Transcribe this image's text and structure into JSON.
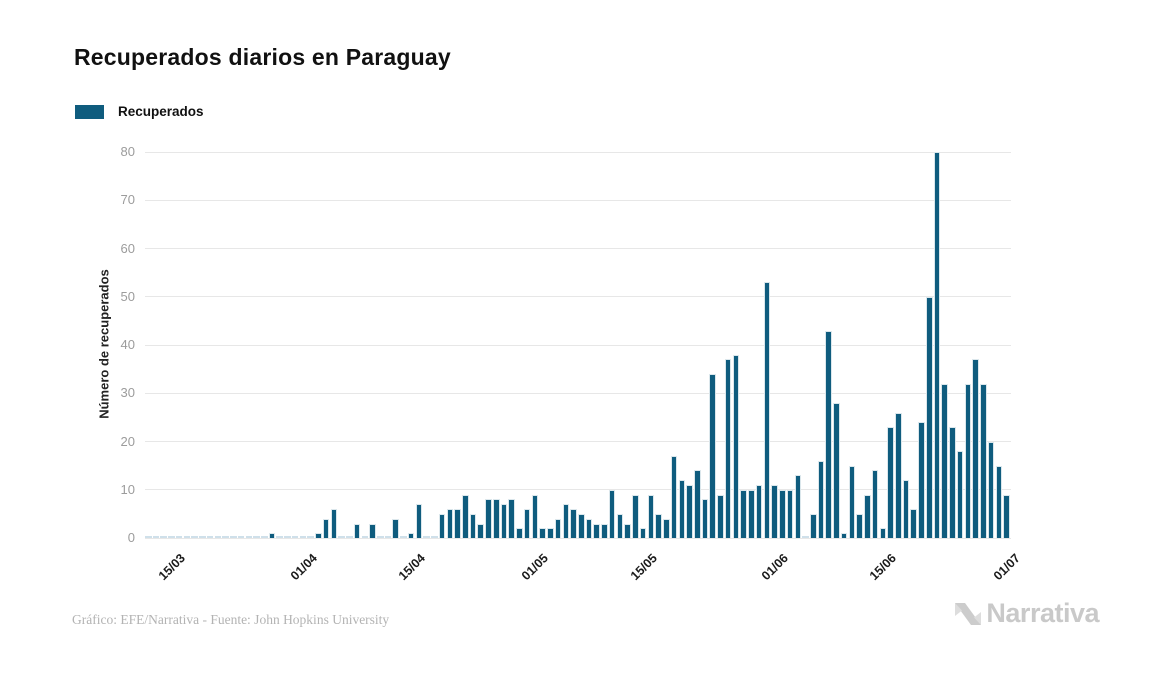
{
  "title": "Recuperados diarios en Paraguay",
  "legend": {
    "label": "Recuperados",
    "color": "#0f5c7e"
  },
  "y_axis": {
    "label": "Número de recuperados",
    "ticks": [
      0,
      10,
      20,
      30,
      40,
      50,
      60,
      70,
      80
    ],
    "max": 80
  },
  "x_axis": {
    "tick_labels": [
      "15/03",
      "01/04",
      "15/04",
      "01/05",
      "15/05",
      "01/06",
      "15/06",
      "01/07"
    ]
  },
  "footer": {
    "credit": "Gráfico: EFE/Narrativa - Fuente: John Hopkins University"
  },
  "logo": {
    "text": "Narrativa"
  },
  "colors": {
    "bar": "#0f5c7e",
    "zero_bar": "#cfe0ea",
    "gridline": "#e7e7e7",
    "tick_text": "#9c9c9c",
    "logo_gray": "#c9c9c9"
  },
  "chart_data": {
    "type": "bar",
    "title": "Recuperados diarios en Paraguay",
    "xlabel": "",
    "ylabel": "Número de recuperados",
    "ylim": [
      0,
      80
    ],
    "grid": "horizontal",
    "legend_position": "top-left",
    "series_name": "Recuperados",
    "x": [
      "12/03",
      "13/03",
      "14/03",
      "15/03",
      "16/03",
      "17/03",
      "18/03",
      "19/03",
      "20/03",
      "21/03",
      "22/03",
      "23/03",
      "24/03",
      "25/03",
      "26/03",
      "27/03",
      "28/03",
      "29/03",
      "30/03",
      "31/03",
      "01/04",
      "02/04",
      "03/04",
      "04/04",
      "05/04",
      "06/04",
      "07/04",
      "08/04",
      "09/04",
      "10/04",
      "11/04",
      "12/04",
      "13/04",
      "14/04",
      "15/04",
      "16/04",
      "17/04",
      "18/04",
      "19/04",
      "20/04",
      "21/04",
      "22/04",
      "23/04",
      "24/04",
      "25/04",
      "26/04",
      "27/04",
      "28/04",
      "29/04",
      "30/04",
      "01/05",
      "02/05",
      "03/05",
      "04/05",
      "05/05",
      "06/05",
      "07/05",
      "08/05",
      "09/05",
      "10/05",
      "11/05",
      "12/05",
      "13/05",
      "14/05",
      "15/05",
      "16/05",
      "17/05",
      "18/05",
      "19/05",
      "20/05",
      "21/05",
      "22/05",
      "23/05",
      "24/05",
      "25/05",
      "26/05",
      "27/05",
      "28/05",
      "29/05",
      "30/05",
      "31/05",
      "01/06",
      "02/06",
      "03/06",
      "04/06",
      "05/06",
      "06/06",
      "07/06",
      "08/06",
      "09/06",
      "10/06",
      "11/06",
      "12/06",
      "13/06",
      "14/06",
      "15/06",
      "16/06",
      "17/06",
      "18/06",
      "19/06",
      "20/06",
      "21/06",
      "22/06",
      "23/06",
      "24/06",
      "25/06",
      "26/06",
      "27/06",
      "28/06",
      "29/06",
      "30/06",
      "01/07"
    ],
    "values": [
      0,
      0,
      0,
      0,
      0,
      0,
      0,
      0,
      0,
      0,
      0,
      0,
      0,
      0,
      0,
      0,
      1,
      0,
      0,
      0,
      0,
      0,
      1,
      4,
      6,
      0,
      0,
      3,
      0,
      3,
      0,
      0,
      4,
      0,
      1,
      7,
      0,
      0,
      5,
      6,
      6,
      9,
      5,
      3,
      8,
      8,
      7,
      8,
      2,
      6,
      9,
      2,
      2,
      4,
      7,
      6,
      5,
      4,
      3,
      3,
      10,
      5,
      3,
      9,
      2,
      9,
      5,
      4,
      17,
      12,
      11,
      14,
      8,
      34,
      9,
      37,
      38,
      10,
      10,
      11,
      53,
      11,
      10,
      10,
      13,
      0,
      5,
      16,
      43,
      28,
      1,
      15,
      5,
      9,
      14,
      2,
      23,
      26,
      12,
      6,
      24,
      50,
      80,
      32,
      23,
      18,
      32,
      37,
      32,
      20,
      15,
      9
    ]
  }
}
